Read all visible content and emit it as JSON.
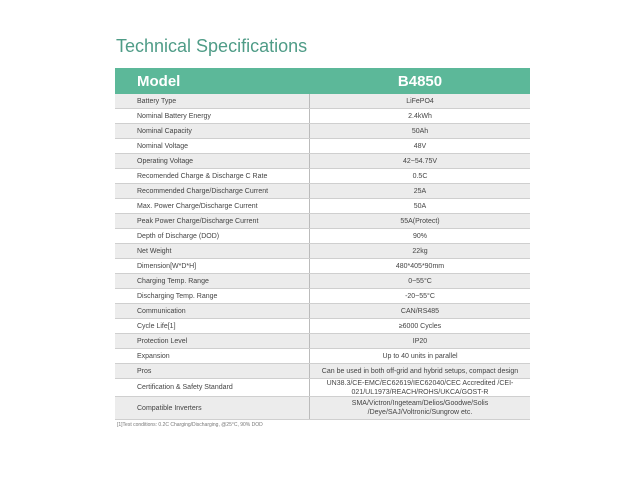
{
  "title": "Technical Specifications",
  "header": {
    "label": "Model",
    "value": "B4850"
  },
  "rows": [
    {
      "label": "Battery Type",
      "value": "LiFePO4"
    },
    {
      "label": "Nominal Battery Energy",
      "value": "2.4kWh"
    },
    {
      "label": "Nominal Capacity",
      "value": "50Ah"
    },
    {
      "label": "Nominal Voltage",
      "value": "48V"
    },
    {
      "label": "Operating Voltage",
      "value": "42~54.75V"
    },
    {
      "label": "Recomended Charge & Discharge C Rate",
      "value": "0.5C"
    },
    {
      "label": "Recommended Charge/Discharge Current",
      "value": "25A"
    },
    {
      "label": "Max. Power Charge/Discharge Current",
      "value": "50A"
    },
    {
      "label": "Peak Power Charge/Discharge Current",
      "value": "55A(Protect)"
    },
    {
      "label": "Depth of Discharge (DOD)",
      "value": "90%"
    },
    {
      "label": "Net Weight",
      "value": "22kg"
    },
    {
      "label": "Dimension[W*D*H]",
      "value": "480*405*90mm"
    },
    {
      "label": "Charging Temp. Range",
      "value": "0~55°C"
    },
    {
      "label": "Discharging Temp. Range",
      "value": "-20~55°C"
    },
    {
      "label": "Communication",
      "value": "CAN/RS485"
    },
    {
      "label": "Cycle Life[1]",
      "value": "≥6000 Cycles"
    },
    {
      "label": "Protection Level",
      "value": "IP20"
    },
    {
      "label": "Expansion",
      "value": "Up to 40 units in parallel"
    },
    {
      "label": "Pros",
      "value": "Can be used in both off-grid and hybrid setups, compact design"
    },
    {
      "label": "Certification & Safety Standard",
      "value": "UN38.3/CE-EMC/EC62619/IEC62040/CEC Accredited /CEI-021/UL1973/REACH/ROHS/UKCA/GOST-R"
    },
    {
      "label": "Compatible Inverters",
      "value": "SMA/Victron/Ingeteam/Delios/Goodwe/Solis /Deye/SAJ/Voltronic/Sungrow etc."
    }
  ],
  "footnote": "[1]Test conditions: 0.2C Charging/Discharging, @25°C, 90% DOD",
  "colors": {
    "header_bg": "#5cb899",
    "title": "#4f9c87",
    "row_alt": "#ececec"
  }
}
